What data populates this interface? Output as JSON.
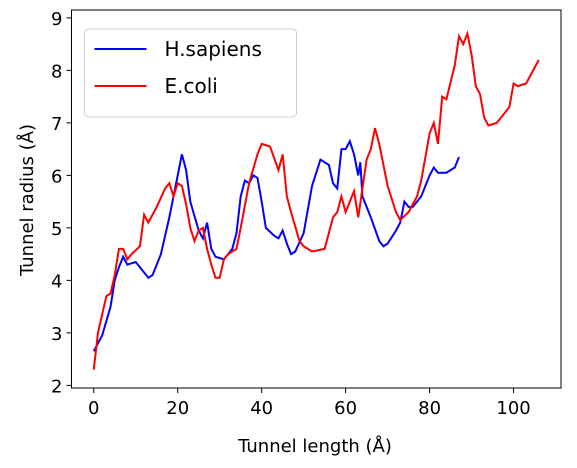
{
  "chart_data": {
    "type": "line",
    "xlabel": "Tunnel length (Å)",
    "ylabel": "Tunnel radius (Å)",
    "xlim": [
      -5.3,
      111.3
    ],
    "ylim": [
      1.95,
      9.15
    ],
    "xticks": [
      0,
      20,
      40,
      60,
      80,
      100
    ],
    "yticks": [
      2,
      3,
      4,
      5,
      6,
      7,
      8,
      9
    ],
    "legend": "upper left",
    "series": [
      {
        "name": "H.sapiens",
        "color": "#0000ff",
        "x": [
          0,
          2,
          4,
          5,
          6,
          7,
          8,
          10,
          12,
          13,
          14,
          16,
          18,
          20,
          21,
          22,
          23,
          25,
          26,
          27,
          28,
          29,
          31,
          33,
          34,
          35,
          36,
          37,
          38,
          39,
          40,
          41,
          43,
          44,
          45,
          46,
          47,
          48,
          50,
          52,
          54,
          56,
          57,
          58,
          59,
          60,
          61,
          62,
          63,
          63.5,
          64,
          66,
          68,
          69,
          70,
          72,
          73,
          74,
          75,
          76,
          78,
          80,
          81,
          82,
          84,
          86,
          87
        ],
        "values": [
          2.65,
          2.95,
          3.5,
          4.0,
          4.25,
          4.45,
          4.3,
          4.35,
          4.15,
          4.05,
          4.1,
          4.5,
          5.2,
          6.0,
          6.4,
          6.1,
          5.5,
          4.95,
          4.8,
          5.1,
          4.6,
          4.45,
          4.4,
          4.6,
          4.9,
          5.6,
          5.9,
          5.85,
          6.0,
          5.95,
          5.5,
          5.0,
          4.85,
          4.8,
          4.95,
          4.7,
          4.5,
          4.55,
          4.9,
          5.8,
          6.3,
          6.2,
          5.85,
          5.75,
          6.5,
          6.5,
          6.65,
          6.4,
          6.0,
          6.25,
          5.6,
          5.2,
          4.75,
          4.65,
          4.7,
          4.95,
          5.1,
          5.5,
          5.4,
          5.4,
          5.6,
          6.0,
          6.15,
          6.05,
          6.05,
          6.15,
          6.35
        ]
      },
      {
        "name": "E.coli",
        "color": "#ff0000",
        "x": [
          0,
          1,
          3,
          4,
          5,
          6,
          7,
          8,
          9,
          11,
          12,
          13,
          15,
          17,
          18,
          19,
          20,
          21,
          22,
          23,
          24,
          25,
          26,
          27,
          28,
          29,
          30,
          31,
          32,
          34,
          35,
          37,
          39,
          40,
          42,
          44,
          45,
          46,
          47,
          49,
          50,
          52,
          55,
          57,
          58,
          59,
          60,
          61,
          62,
          63,
          65,
          66,
          67,
          68,
          70,
          72,
          73,
          75,
          77,
          78,
          80,
          81,
          82,
          83,
          84,
          86,
          87,
          88,
          89,
          90,
          91,
          92,
          93,
          94,
          96,
          98,
          99,
          100,
          101,
          103,
          104,
          106
        ],
        "values": [
          2.3,
          3.0,
          3.7,
          3.75,
          4.1,
          4.6,
          4.6,
          4.4,
          4.5,
          4.65,
          5.25,
          5.1,
          5.4,
          5.75,
          5.85,
          5.6,
          5.85,
          5.8,
          5.45,
          5.0,
          4.75,
          4.95,
          5.0,
          4.6,
          4.3,
          4.05,
          4.05,
          4.4,
          4.5,
          4.6,
          5.0,
          5.85,
          6.4,
          6.6,
          6.55,
          6.1,
          6.4,
          5.6,
          5.3,
          4.75,
          4.65,
          4.55,
          4.6,
          5.2,
          5.3,
          5.6,
          5.3,
          5.5,
          5.7,
          5.2,
          6.3,
          6.5,
          6.9,
          6.6,
          5.8,
          5.3,
          5.15,
          5.3,
          5.6,
          5.9,
          6.8,
          7.0,
          6.6,
          7.5,
          7.45,
          8.1,
          8.65,
          8.5,
          8.7,
          8.3,
          7.7,
          7.55,
          7.1,
          6.95,
          7.0,
          7.2,
          7.3,
          7.75,
          7.7,
          7.75,
          7.9,
          8.2
        ]
      }
    ]
  }
}
